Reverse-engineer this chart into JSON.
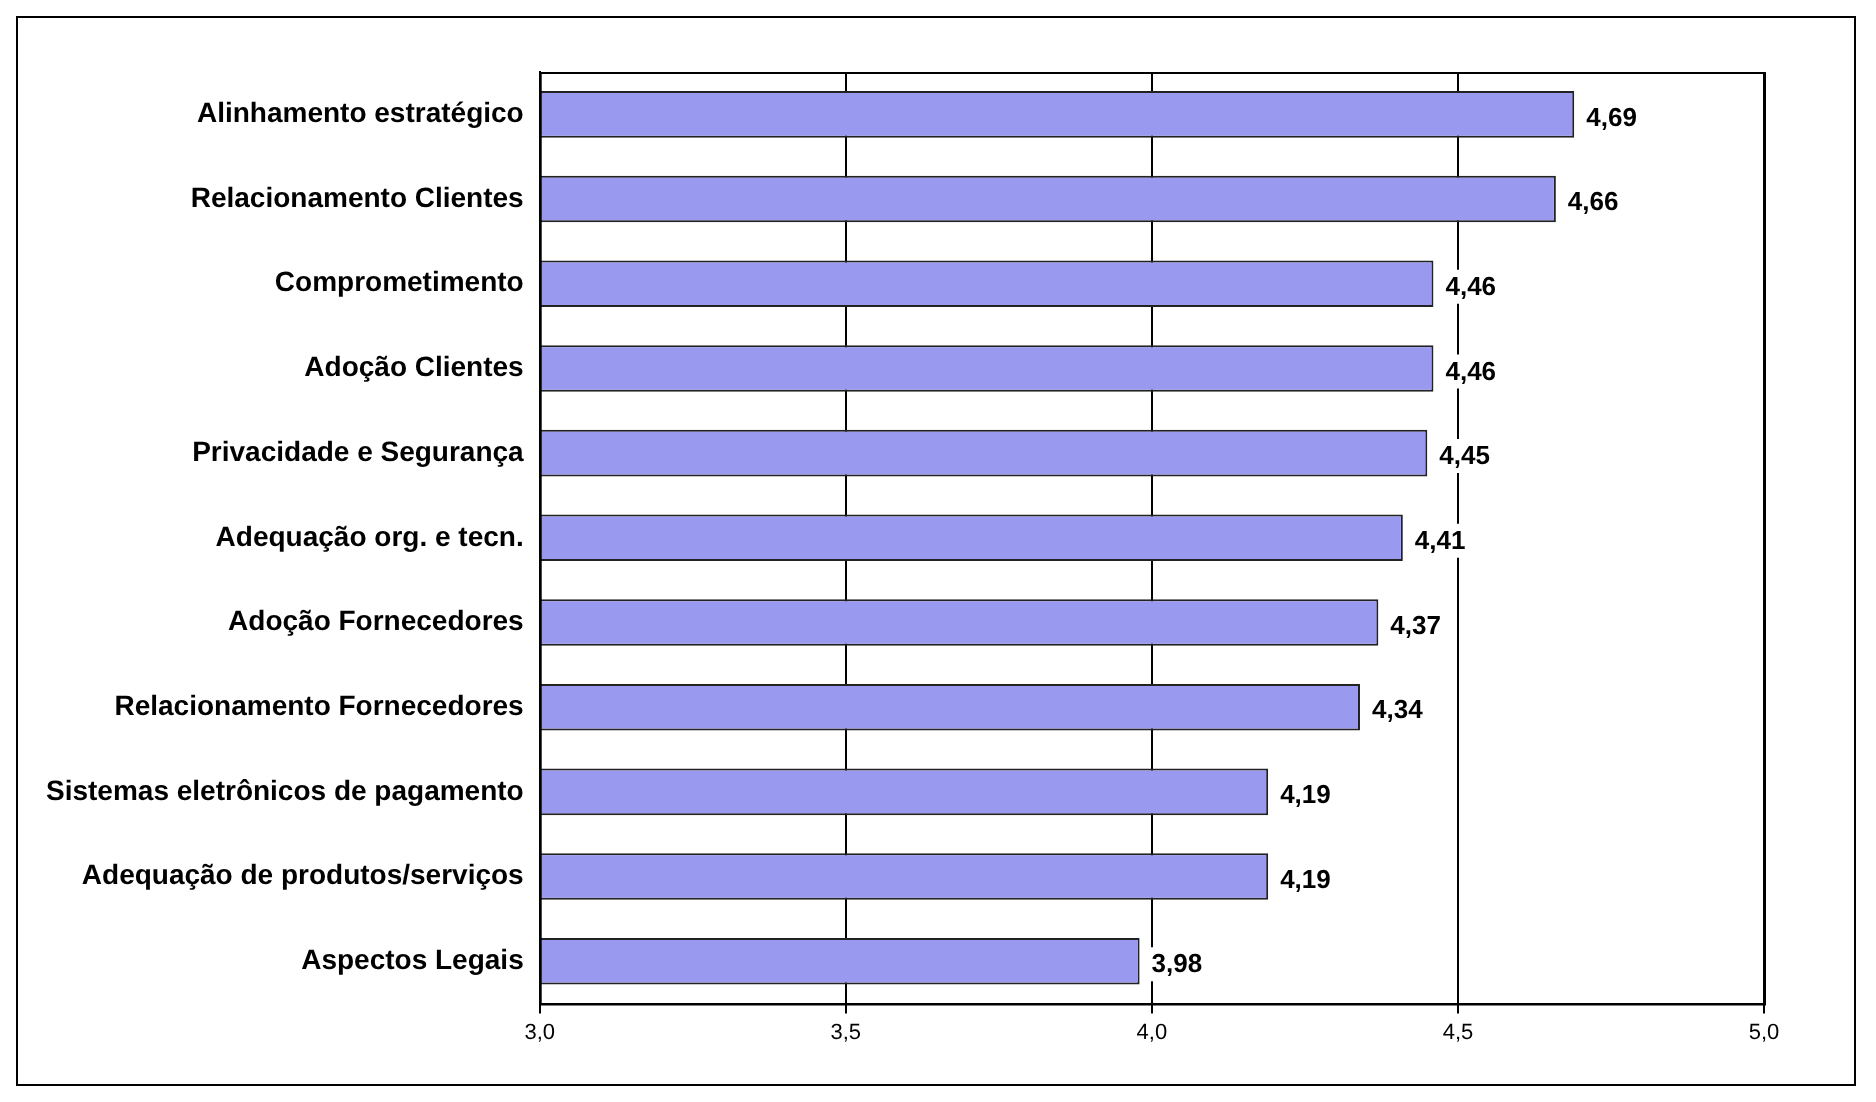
{
  "chart_data": {
    "type": "bar",
    "orientation": "horizontal",
    "categories": [
      "Alinhamento estratégico",
      "Relacionamento Clientes",
      "Comprometimento",
      "Adoção Clientes",
      "Privacidade e Segurança",
      "Adequação org. e tecn.",
      "Adoção Fornecedores",
      "Relacionamento Fornecedores",
      "Sistemas eletrônicos de pagamento",
      "Adequação de produtos/serviços",
      "Aspectos Legais"
    ],
    "values": [
      4.69,
      4.66,
      4.46,
      4.46,
      4.45,
      4.41,
      4.37,
      4.34,
      4.19,
      4.19,
      3.98
    ],
    "value_labels": [
      "4,69",
      "4,66",
      "4,46",
      "4,46",
      "4,45",
      "4,41",
      "4,37",
      "4,34",
      "4,19",
      "4,19",
      "3,98"
    ],
    "color": "#9999f0",
    "xlim": [
      3,
      5
    ],
    "xticks": [
      {
        "value": 3,
        "label": "3,0"
      },
      {
        "value": 3.5,
        "label": "3,5"
      },
      {
        "value": 4,
        "label": "4,0"
      },
      {
        "value": 4.5,
        "label": "4,5"
      },
      {
        "value": 5,
        "label": "5,0"
      }
    ],
    "grid": "x"
  }
}
